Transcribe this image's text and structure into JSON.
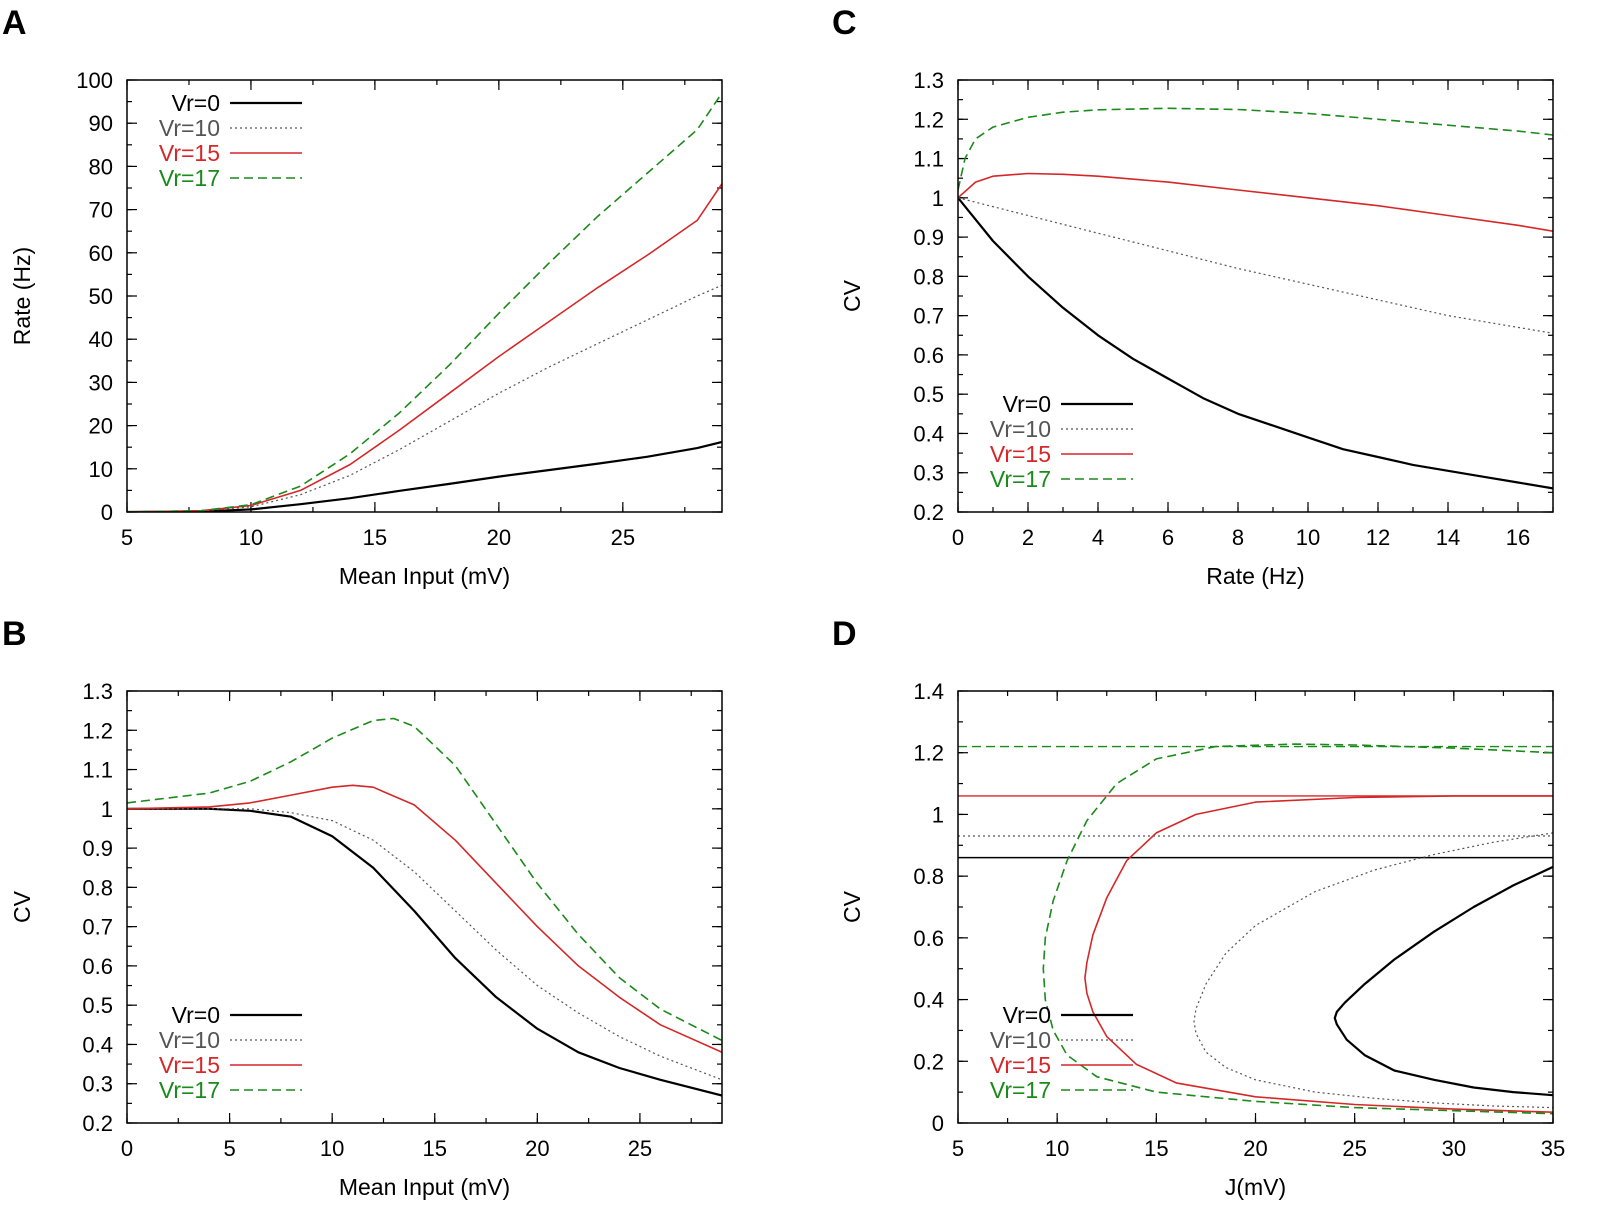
{
  "series_styles": {
    "Vr=0": {
      "color": "#000000",
      "dash": "none",
      "width": 2.2
    },
    "Vr=10": {
      "color": "#555555",
      "dash": "2,3",
      "width": 1.2
    },
    "Vr=15": {
      "color": "#d62728",
      "dash": "none",
      "width": 1.6
    },
    "Vr=17": {
      "color": "#1a8a1a",
      "dash": "9,5",
      "width": 1.6
    }
  },
  "chart_data": [
    {
      "panel": "A",
      "type": "line",
      "xlabel": "Mean Input (mV)",
      "ylabel": "Rate (Hz)",
      "xlim": [
        5,
        29
      ],
      "ylim": [
        0,
        100
      ],
      "xticks": [
        5,
        10,
        15,
        20,
        25
      ],
      "yticks": [
        0,
        10,
        20,
        30,
        40,
        50,
        60,
        70,
        80,
        90,
        100
      ],
      "legend_position": "top-left",
      "series": [
        {
          "name": "Vr=0",
          "x": [
            5,
            8,
            10,
            12,
            14,
            16,
            18,
            20,
            22,
            24,
            26,
            28,
            29
          ],
          "y": [
            0,
            0.1,
            0.6,
            1.8,
            3.2,
            4.9,
            6.5,
            8.2,
            9.7,
            11.2,
            12.8,
            14.8,
            16.2
          ]
        },
        {
          "name": "Vr=10",
          "x": [
            5,
            8,
            10,
            12,
            14,
            16,
            18,
            20,
            22,
            24,
            26,
            28,
            29
          ],
          "y": [
            0,
            0.2,
            1.2,
            4.0,
            8.5,
            14.5,
            21,
            27.5,
            33.5,
            39,
            44.5,
            50,
            52.5
          ]
        },
        {
          "name": "Vr=15",
          "x": [
            5,
            8,
            10,
            12,
            14,
            16,
            18,
            20,
            22,
            24,
            26,
            28,
            29
          ],
          "y": [
            0,
            0.3,
            1.5,
            5.0,
            11,
            19,
            27.5,
            36,
            44,
            52,
            59.5,
            67.5,
            76
          ]
        },
        {
          "name": "Vr=17",
          "x": [
            5,
            8,
            10,
            12,
            14,
            16,
            18,
            20,
            22,
            24,
            26,
            28,
            29
          ],
          "y": [
            0,
            0.3,
            1.7,
            6.0,
            13.5,
            23,
            34,
            46,
            57.5,
            68.5,
            78.5,
            88.5,
            97
          ]
        }
      ]
    },
    {
      "panel": "B",
      "type": "line",
      "xlabel": "Mean Input (mV)",
      "ylabel": "CV",
      "xlim": [
        0,
        29
      ],
      "ylim": [
        0.2,
        1.3
      ],
      "xticks": [
        0,
        5,
        10,
        15,
        20,
        25
      ],
      "yticks": [
        0.2,
        0.3,
        0.4,
        0.5,
        0.6,
        0.7,
        0.8,
        0.9,
        1,
        1.1,
        1.2,
        1.3
      ],
      "legend_position": "bottom-left",
      "series": [
        {
          "name": "Vr=0",
          "x": [
            0,
            4,
            6,
            8,
            10,
            12,
            14,
            16,
            18,
            20,
            22,
            24,
            26,
            29
          ],
          "y": [
            1.0,
            1.0,
            0.995,
            0.98,
            0.93,
            0.85,
            0.74,
            0.62,
            0.52,
            0.44,
            0.38,
            0.34,
            0.31,
            0.27
          ]
        },
        {
          "name": "Vr=10",
          "x": [
            0,
            4,
            6,
            8,
            10,
            12,
            14,
            16,
            18,
            20,
            22,
            24,
            26,
            29
          ],
          "y": [
            1.0,
            1.0,
            1.0,
            0.99,
            0.97,
            0.92,
            0.84,
            0.74,
            0.64,
            0.55,
            0.48,
            0.42,
            0.37,
            0.31
          ]
        },
        {
          "name": "Vr=15",
          "x": [
            0,
            4,
            6,
            8,
            10,
            11,
            12,
            14,
            16,
            18,
            20,
            22,
            24,
            26,
            29
          ],
          "y": [
            1.0,
            1.005,
            1.015,
            1.035,
            1.055,
            1.06,
            1.055,
            1.01,
            0.92,
            0.81,
            0.7,
            0.6,
            0.52,
            0.45,
            0.38
          ]
        },
        {
          "name": "Vr=17",
          "x": [
            0,
            4,
            6,
            8,
            10,
            12,
            13,
            14,
            16,
            18,
            20,
            22,
            24,
            26,
            29
          ],
          "y": [
            1.015,
            1.04,
            1.07,
            1.12,
            1.18,
            1.225,
            1.23,
            1.21,
            1.11,
            0.96,
            0.81,
            0.68,
            0.57,
            0.49,
            0.41
          ]
        }
      ]
    },
    {
      "panel": "C",
      "type": "line",
      "xlabel": "Rate (Hz)",
      "ylabel": "CV",
      "xlim": [
        0,
        17
      ],
      "ylim": [
        0.2,
        1.3
      ],
      "xticks": [
        0,
        2,
        4,
        6,
        8,
        10,
        12,
        14,
        16
      ],
      "yticks": [
        0.2,
        0.3,
        0.4,
        0.5,
        0.6,
        0.7,
        0.8,
        0.9,
        1,
        1.1,
        1.2,
        1.3
      ],
      "legend_position": "bottom-left",
      "series": [
        {
          "name": "Vr=0",
          "x": [
            0,
            1,
            2,
            3,
            4,
            5,
            6,
            7,
            8,
            9,
            10,
            11,
            12,
            13,
            14,
            15,
            16,
            17
          ],
          "y": [
            1.0,
            0.89,
            0.8,
            0.72,
            0.65,
            0.59,
            0.54,
            0.49,
            0.45,
            0.42,
            0.39,
            0.36,
            0.34,
            0.32,
            0.305,
            0.29,
            0.275,
            0.26
          ]
        },
        {
          "name": "Vr=10",
          "x": [
            0,
            2,
            4,
            6,
            8,
            10,
            12,
            14,
            16,
            17
          ],
          "y": [
            1.0,
            0.955,
            0.91,
            0.865,
            0.82,
            0.78,
            0.74,
            0.7,
            0.67,
            0.655
          ]
        },
        {
          "name": "Vr=15",
          "x": [
            0,
            0.5,
            1,
            2,
            3,
            4,
            6,
            8,
            10,
            12,
            14,
            16,
            17
          ],
          "y": [
            1.0,
            1.04,
            1.055,
            1.062,
            1.06,
            1.055,
            1.04,
            1.02,
            1.0,
            0.98,
            0.955,
            0.93,
            0.915
          ]
        },
        {
          "name": "Vr=17",
          "x": [
            0,
            0.2,
            0.5,
            1,
            2,
            3,
            4,
            6,
            8,
            10,
            12,
            14,
            16,
            17
          ],
          "y": [
            1.02,
            1.1,
            1.15,
            1.18,
            1.205,
            1.218,
            1.224,
            1.228,
            1.225,
            1.215,
            1.2,
            1.185,
            1.17,
            1.16
          ]
        }
      ]
    },
    {
      "panel": "D",
      "type": "line",
      "xlabel": "J(mV)",
      "ylabel": "CV",
      "xlim": [
        5,
        35
      ],
      "ylim": [
        0,
        1.4
      ],
      "xticks": [
        5,
        10,
        15,
        20,
        25,
        30,
        35
      ],
      "yticks": [
        0,
        0.2,
        0.4,
        0.6,
        0.8,
        1,
        1.2,
        1.4
      ],
      "legend_position": "bottom-left",
      "reference_lines": [
        {
          "name": "Vr=0",
          "y": 0.86
        },
        {
          "name": "Vr=10",
          "y": 0.93
        },
        {
          "name": "Vr=15",
          "y": 1.06
        },
        {
          "name": "Vr=17",
          "y": 1.22
        }
      ],
      "series": [
        {
          "name": "Vr=0",
          "x": [
            35,
            33,
            31,
            29,
            27,
            25.5,
            24.5,
            24.1,
            24.0,
            24.1,
            24.6,
            25.5,
            27,
            29,
            31,
            33,
            35
          ],
          "y": [
            0.83,
            0.77,
            0.7,
            0.62,
            0.53,
            0.45,
            0.39,
            0.36,
            0.34,
            0.32,
            0.27,
            0.22,
            0.17,
            0.14,
            0.115,
            0.1,
            0.09
          ]
        },
        {
          "name": "Vr=10",
          "x": [
            35,
            32,
            29,
            26,
            23,
            20,
            18.5,
            17.5,
            17.0,
            16.9,
            17.0,
            17.5,
            18.5,
            20,
            23,
            26,
            29,
            32,
            35
          ],
          "y": [
            0.94,
            0.91,
            0.87,
            0.82,
            0.75,
            0.64,
            0.55,
            0.45,
            0.37,
            0.33,
            0.29,
            0.23,
            0.18,
            0.14,
            0.1,
            0.08,
            0.065,
            0.055,
            0.05
          ]
        },
        {
          "name": "Vr=15",
          "x": [
            35,
            30,
            25,
            20,
            17,
            15,
            13.5,
            12.5,
            11.8,
            11.5,
            11.4,
            11.5,
            11.8,
            12.5,
            14,
            16,
            20,
            25,
            30,
            35
          ],
          "y": [
            1.06,
            1.06,
            1.055,
            1.04,
            1.0,
            0.94,
            0.85,
            0.73,
            0.61,
            0.52,
            0.47,
            0.42,
            0.36,
            0.28,
            0.19,
            0.13,
            0.085,
            0.06,
            0.045,
            0.035
          ]
        },
        {
          "name": "Vr=17",
          "x": [
            35,
            30,
            25,
            22,
            18,
            15,
            13,
            11.5,
            10.5,
            9.8,
            9.4,
            9.3,
            9.4,
            9.8,
            10.5,
            12,
            15,
            20,
            25,
            30,
            35
          ],
          "y": [
            1.2,
            1.215,
            1.225,
            1.228,
            1.22,
            1.18,
            1.1,
            0.98,
            0.85,
            0.72,
            0.6,
            0.5,
            0.4,
            0.3,
            0.22,
            0.15,
            0.1,
            0.07,
            0.05,
            0.04,
            0.03
          ]
        }
      ]
    }
  ]
}
